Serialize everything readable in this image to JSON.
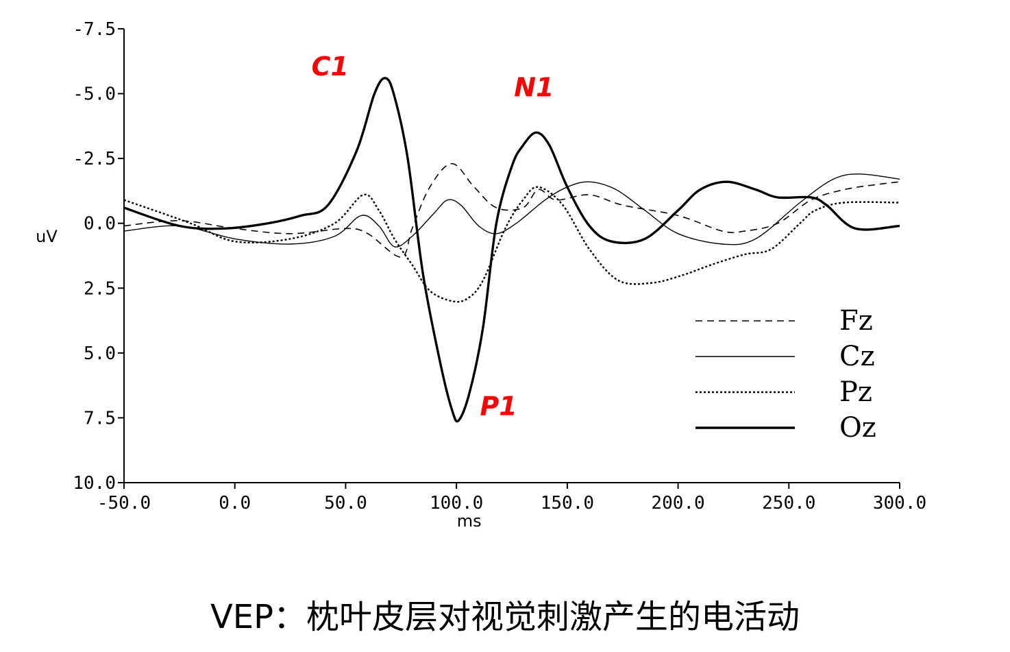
{
  "caption": "VEP：枕叶皮层对视觉刺激产生的电活动",
  "colors": {
    "axis": "#000000",
    "annotation": "#ff0000"
  },
  "chart_data": {
    "type": "line",
    "xlabel": "ms",
    "ylabel": "uV",
    "xlim": [
      -50,
      300
    ],
    "ylim": [
      -7.5,
      10
    ],
    "y_inverted": true,
    "x_ticks": [
      -50,
      0,
      50,
      100,
      150,
      200,
      250,
      300
    ],
    "x_tick_labels": [
      "-50.0",
      "0.0",
      "50.0",
      "100.0",
      "150.0",
      "200.0",
      "250.0",
      "300.0"
    ],
    "y_ticks": [
      -7.5,
      -5,
      -2.5,
      0,
      2.5,
      5,
      7.5,
      10
    ],
    "y_tick_labels": [
      "-7.5",
      "-5.0",
      "-2.5",
      "0.0",
      "2.5",
      "5.0",
      "7.5",
      "10.0"
    ],
    "grid": false,
    "legend_position": "bottom-right",
    "series": [
      {
        "name": "Fz",
        "style": "dashed",
        "stroke_width": 1.6,
        "points": [
          [
            -50,
            0.1
          ],
          [
            -25,
            -0.1
          ],
          [
            0,
            0.2
          ],
          [
            25,
            0.4
          ],
          [
            50,
            0.2
          ],
          [
            60,
            0.4
          ],
          [
            75,
            1.3
          ],
          [
            80,
            0.2
          ],
          [
            88,
            -1.4
          ],
          [
            98,
            -2.3
          ],
          [
            108,
            -1.4
          ],
          [
            118,
            -0.6
          ],
          [
            130,
            -0.6
          ],
          [
            137,
            -1.3
          ],
          [
            145,
            -0.9
          ],
          [
            160,
            -1.1
          ],
          [
            175,
            -0.7
          ],
          [
            200,
            -0.3
          ],
          [
            220,
            0.3
          ],
          [
            230,
            0.3
          ],
          [
            245,
            0
          ],
          [
            260,
            -0.9
          ],
          [
            275,
            -1.3
          ],
          [
            290,
            -1.5
          ],
          [
            300,
            -1.6
          ]
        ]
      },
      {
        "name": "Cz",
        "style": "solid",
        "stroke_width": 1.4,
        "points": [
          [
            -50,
            0.3
          ],
          [
            -25,
            0.1
          ],
          [
            0,
            0.6
          ],
          [
            25,
            0.8
          ],
          [
            45,
            0.5
          ],
          [
            57,
            -0.3
          ],
          [
            65,
            0.1
          ],
          [
            72,
            0.9
          ],
          [
            80,
            0.5
          ],
          [
            90,
            -0.4
          ],
          [
            96,
            -0.9
          ],
          [
            102,
            -0.7
          ],
          [
            110,
            0.1
          ],
          [
            118,
            0.4
          ],
          [
            127,
            0
          ],
          [
            140,
            -0.9
          ],
          [
            150,
            -1.4
          ],
          [
            160,
            -1.6
          ],
          [
            172,
            -1.3
          ],
          [
            185,
            -0.5
          ],
          [
            200,
            0.4
          ],
          [
            220,
            0.8
          ],
          [
            235,
            0.6
          ],
          [
            255,
            -0.8
          ],
          [
            270,
            -1.7
          ],
          [
            282,
            -1.9
          ],
          [
            300,
            -1.7
          ]
        ]
      },
      {
        "name": "Pz",
        "style": "dotted",
        "stroke_width": 2.4,
        "points": [
          [
            -50,
            -0.9
          ],
          [
            -20,
            0
          ],
          [
            0,
            0.7
          ],
          [
            25,
            0.6
          ],
          [
            45,
            0
          ],
          [
            58,
            -1.1
          ],
          [
            65,
            -0.5
          ],
          [
            72,
            0.6
          ],
          [
            80,
            1.6
          ],
          [
            88,
            2.6
          ],
          [
            98,
            3.0
          ],
          [
            105,
            2.9
          ],
          [
            112,
            2.2
          ],
          [
            122,
            0.2
          ],
          [
            130,
            -0.9
          ],
          [
            137,
            -1.4
          ],
          [
            148,
            -0.7
          ],
          [
            160,
            1.0
          ],
          [
            173,
            2.2
          ],
          [
            188,
            2.3
          ],
          [
            202,
            2.0
          ],
          [
            215,
            1.6
          ],
          [
            230,
            1.2
          ],
          [
            242,
            1.0
          ],
          [
            255,
            0
          ],
          [
            262,
            -0.5
          ],
          [
            275,
            -0.8
          ],
          [
            300,
            -0.8
          ]
        ]
      },
      {
        "name": "Oz",
        "style": "solid",
        "stroke_width": 3.4,
        "points": [
          [
            -50,
            -0.6
          ],
          [
            -25,
            0.1
          ],
          [
            -5,
            0.2
          ],
          [
            15,
            0
          ],
          [
            30,
            -0.3
          ],
          [
            42,
            -0.7
          ],
          [
            55,
            -2.8
          ],
          [
            63,
            -5.0
          ],
          [
            68,
            -5.6
          ],
          [
            72,
            -4.9
          ],
          [
            78,
            -2.5
          ],
          [
            85,
            2.0
          ],
          [
            93,
            5.5
          ],
          [
            98,
            7.2
          ],
          [
            101,
            7.6
          ],
          [
            106,
            6.5
          ],
          [
            112,
            4.0
          ],
          [
            118,
            0
          ],
          [
            125,
            -2.2
          ],
          [
            130,
            -3.0
          ],
          [
            136,
            -3.5
          ],
          [
            142,
            -3.0
          ],
          [
            150,
            -1.4
          ],
          [
            160,
            0.1
          ],
          [
            170,
            0.7
          ],
          [
            185,
            0.6
          ],
          [
            200,
            -0.5
          ],
          [
            210,
            -1.3
          ],
          [
            222,
            -1.6
          ],
          [
            235,
            -1.3
          ],
          [
            245,
            -1.0
          ],
          [
            260,
            -1.0
          ],
          [
            267,
            -0.7
          ],
          [
            280,
            0.2
          ],
          [
            300,
            0.1
          ]
        ]
      }
    ],
    "annotations": [
      {
        "text": "C1",
        "x": 43,
        "y": -5.7
      },
      {
        "text": "N1",
        "x": 135,
        "y": -4.9
      },
      {
        "text": "P1",
        "x": 119,
        "y": 7.4
      }
    ]
  }
}
